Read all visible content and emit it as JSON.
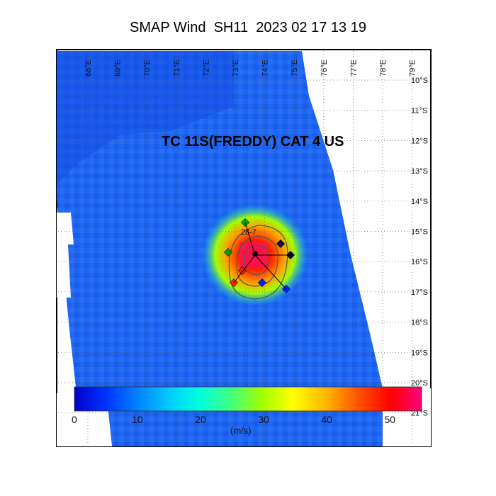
{
  "title": "SMAP Wind  SH11  2023 02 17 13 19",
  "storm_label": "TC 11S(FREDDY) CAT 4 US",
  "storm_annotation": "28-7",
  "lon_labels": [
    "68°E",
    "69°E",
    "70°E",
    "71°E",
    "72°E",
    "73°E",
    "74°E",
    "75°E",
    "76°E",
    "77°E",
    "78°E",
    "79°E"
  ],
  "lat_labels": [
    "10°S",
    "11°S",
    "12°S",
    "13°S",
    "14°S",
    "15°S",
    "16°S",
    "17°S",
    "18°S",
    "19°S",
    "20°S",
    "21°S"
  ],
  "colorbar": {
    "unit": "(m/s)",
    "ticks": [
      "0",
      "10",
      "20",
      "30",
      "40",
      "50"
    ],
    "min": 0,
    "max": 55,
    "colors": [
      "#0000cc",
      "#0033ff",
      "#0080ff",
      "#00c8ff",
      "#00ffe0",
      "#40ff80",
      "#a0ff00",
      "#ffff00",
      "#ffb000",
      "#ff5000",
      "#ff0000",
      "#ff0080"
    ]
  },
  "colors": {
    "background_wind": "#1e64f0",
    "swath_gap": "#ffffff",
    "frame": "#000000"
  }
}
